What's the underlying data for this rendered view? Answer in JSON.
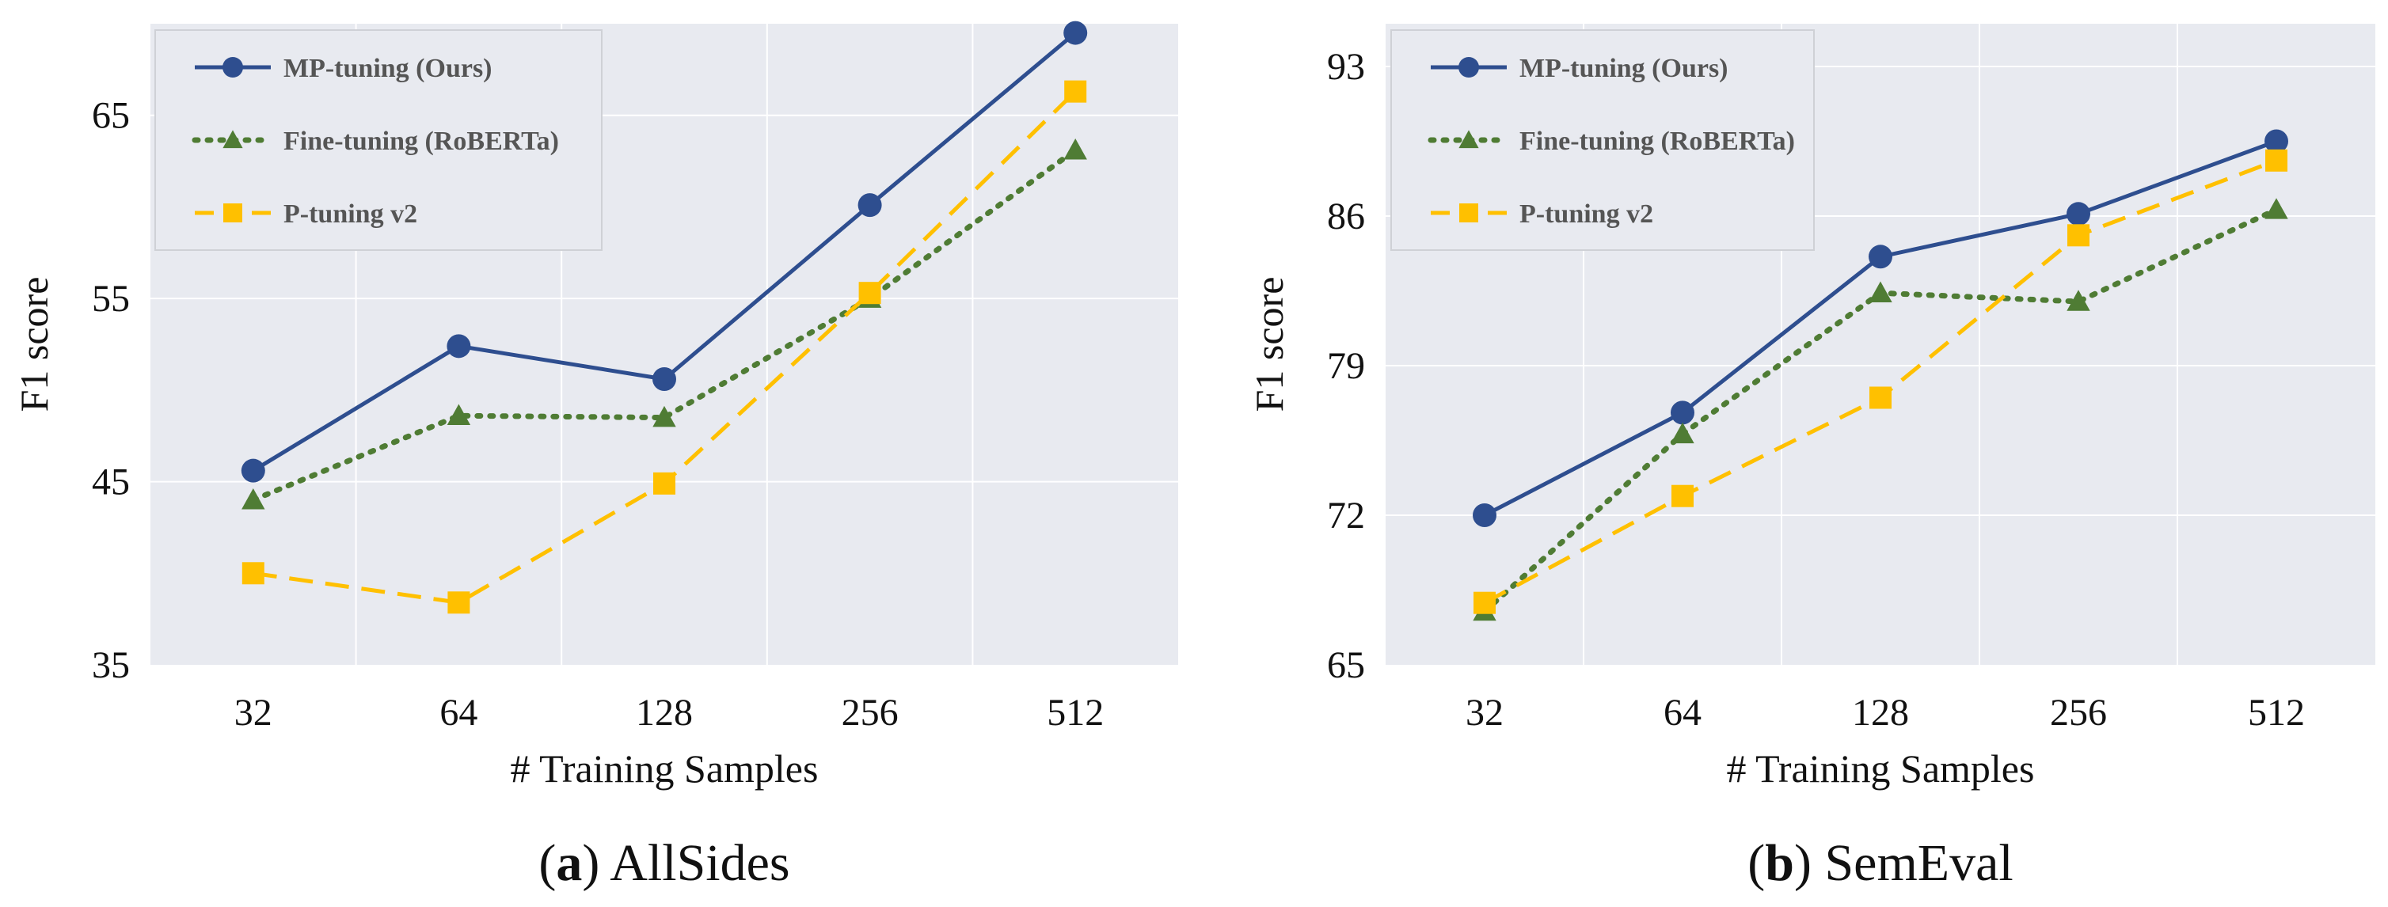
{
  "chart_data": [
    {
      "type": "line",
      "panel": "(a)",
      "panel_letter": "a",
      "title": "AllSides",
      "xlabel": "# Training Samples",
      "ylabel": "F1 score",
      "categories": [
        "32",
        "64",
        "128",
        "256",
        "512"
      ],
      "ylim": [
        35,
        70
      ],
      "yticks": [
        35,
        45,
        55,
        65
      ],
      "grid": true,
      "legend_position": "top-left",
      "series": [
        {
          "name": "MP-tuning (Ours)",
          "color": "#2E4E8F",
          "marker": "circle",
          "dash": "solid",
          "values": [
            45.6,
            52.4,
            50.6,
            60.1,
            69.5
          ]
        },
        {
          "name": "Fine-tuning (RoBERTa)",
          "color": "#4F7C34",
          "marker": "triangle",
          "dash": "dotted",
          "values": [
            44.0,
            48.6,
            48.5,
            55.0,
            63.1
          ]
        },
        {
          "name": "P-tuning v2",
          "color": "#FFC000",
          "marker": "square",
          "dash": "dashed",
          "values": [
            40.0,
            38.4,
            44.9,
            55.3,
            66.3
          ]
        }
      ]
    },
    {
      "type": "line",
      "panel": "(b)",
      "panel_letter": "b",
      "title": "SemEval",
      "xlabel": "# Training Samples",
      "ylabel": "F1 score",
      "categories": [
        "32",
        "64",
        "128",
        "256",
        "512"
      ],
      "ylim": [
        65,
        95
      ],
      "yticks": [
        65,
        72,
        79,
        86,
        93
      ],
      "grid": true,
      "legend_position": "top-left",
      "series": [
        {
          "name": "MP-tuning (Ours)",
          "color": "#2E4E8F",
          "marker": "circle",
          "dash": "solid",
          "values": [
            72.0,
            76.8,
            84.1,
            86.1,
            89.5
          ]
        },
        {
          "name": "Fine-tuning (RoBERTa)",
          "color": "#4F7C34",
          "marker": "triangle",
          "dash": "dotted",
          "values": [
            67.5,
            75.8,
            82.4,
            82.0,
            86.3
          ]
        },
        {
          "name": "P-tuning v2",
          "color": "#FFC000",
          "marker": "square",
          "dash": "dashed",
          "values": [
            67.9,
            72.9,
            77.5,
            85.1,
            88.6
          ]
        }
      ]
    }
  ]
}
